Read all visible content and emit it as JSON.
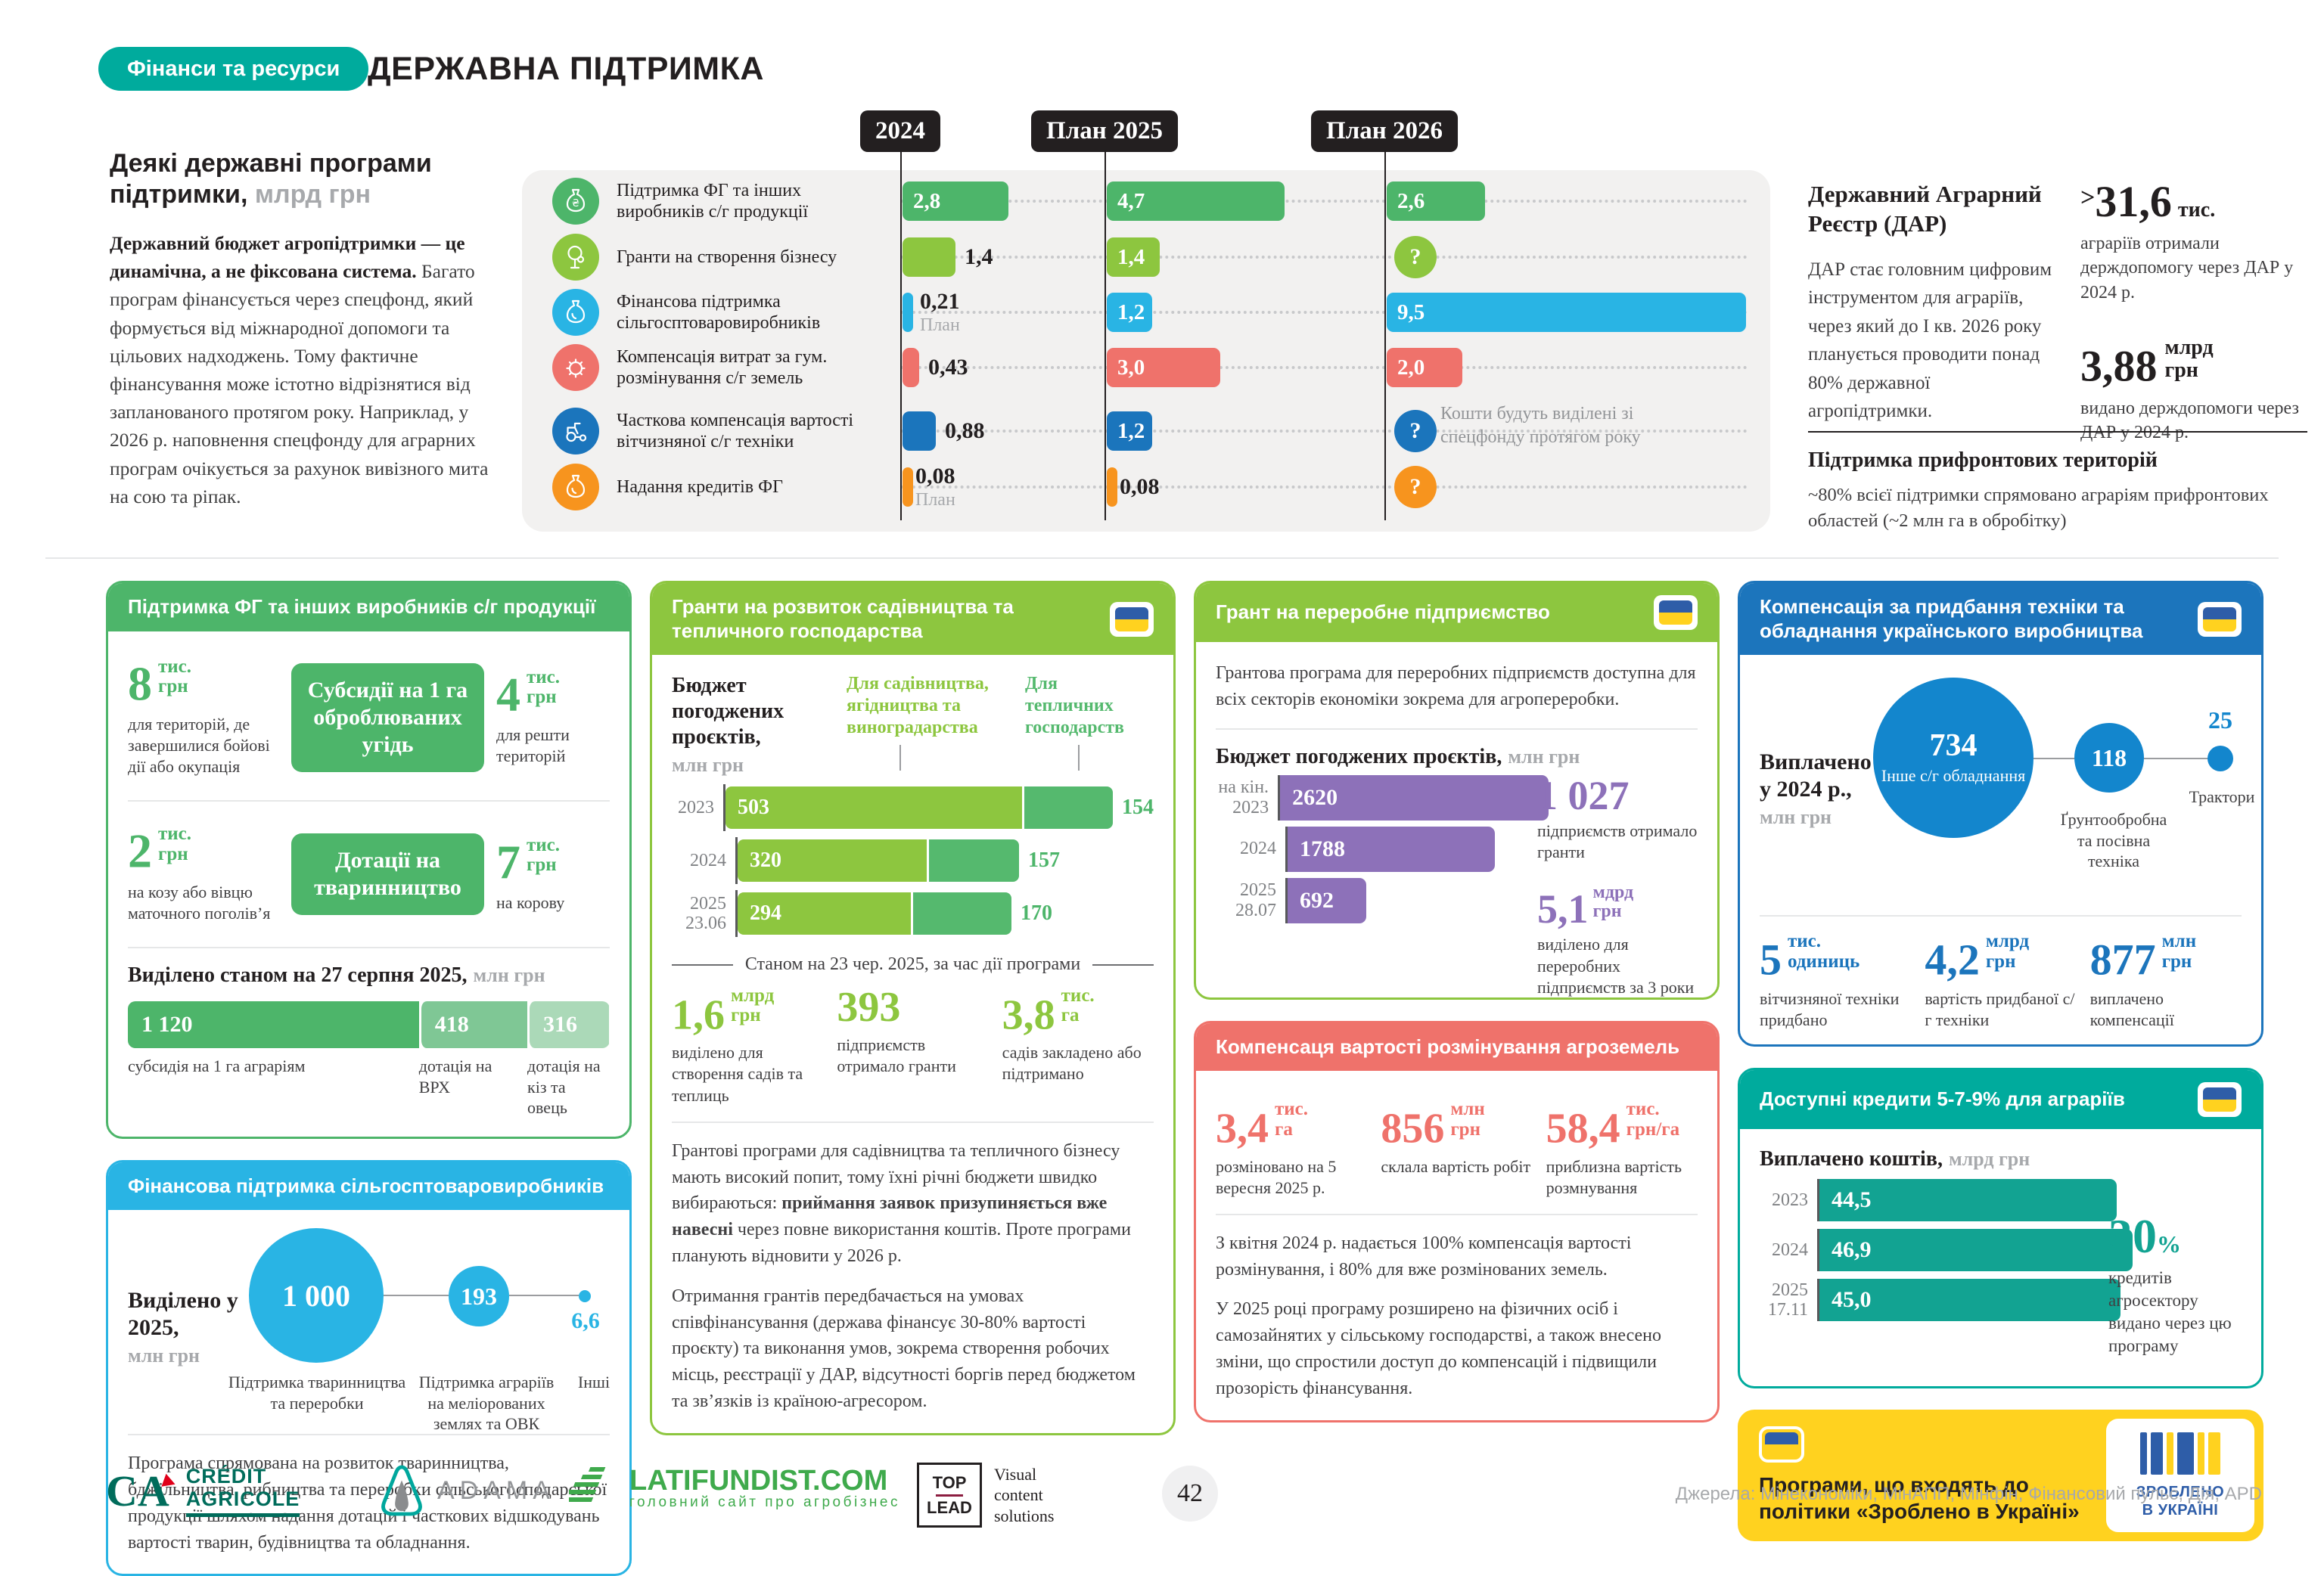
{
  "header": {
    "badge": "Фінанси та ресурси",
    "title": "ДЕРЖАВНА ПІДТРИМКА"
  },
  "intro": {
    "heading": "Деякі державні програми підтримки,",
    "heading_unit": "млрд грн",
    "lead": "Державний бюджет агропідтримки — це динамічна, а не фіксована система.",
    "body": " Багато програм фінансується через спецфонд, який формується від міжнародної допомоги та цільових надходжень. Тому фактичне фінансування може істотно відрізнятися від запланованого протягом року. Наприклад, у 2026 р. наповнення спецфонду для аграрних програм очікується за рахунок вивізного мита на сою та ріпак."
  },
  "chart": {
    "columns": [
      "2024",
      "План 2025",
      "План 2026"
    ],
    "note": "Кошти будуть виділені зі спецфонду протягом року",
    "rows": [
      {
        "label": "Підтримка ФГ та інших виробників с/г продукції",
        "icon": "sack-hryvnia-icon",
        "color": "#4db56a",
        "cells": [
          {
            "v": "2,8",
            "n": 2.8,
            "in": true
          },
          {
            "v": "4,7",
            "n": 4.7,
            "in": true
          },
          {
            "v": "2,6",
            "n": 2.6,
            "in": true
          }
        ]
      },
      {
        "label": "Гранти на створення бізнесу",
        "icon": "tree-icon",
        "color": "#8dc63f",
        "cells": [
          {
            "v": "1,4",
            "n": 1.4,
            "in": false
          },
          {
            "v": "1,4",
            "n": 1.4,
            "in": true
          },
          {
            "q": true
          }
        ]
      },
      {
        "label": "Фінансова підтримка сільгосптоваровиробників",
        "icon": "sack-icon",
        "color": "#29b4e4",
        "cells": [
          {
            "v": "0,21",
            "n": 0.21,
            "in": false,
            "sub": "План"
          },
          {
            "v": "1,2",
            "n": 1.2,
            "in": true
          },
          {
            "v": "9,5",
            "n": 9.5,
            "in": true
          }
        ]
      },
      {
        "label": "Компенсація витрат за гум. розмінування с/г земель",
        "icon": "mine-icon",
        "color": "#ef726b",
        "cells": [
          {
            "v": "0,43",
            "n": 0.43,
            "in": false
          },
          {
            "v": "3,0",
            "n": 3.0,
            "in": true
          },
          {
            "v": "2,0",
            "n": 2.0,
            "in": true
          }
        ]
      },
      {
        "label": "Часткова компенсація вартості вітчизняної с/г техніки",
        "icon": "tractor-icon",
        "color": "#1b75bc",
        "cells": [
          {
            "v": "0,88",
            "n": 0.88,
            "in": false
          },
          {
            "v": "1,2",
            "n": 1.2,
            "in": true
          },
          {
            "q": true
          }
        ]
      },
      {
        "label": "Надання кредитів ФГ",
        "icon": "sack-icon",
        "color": "#f7941e",
        "cells": [
          {
            "v": "0,08",
            "n": 0.08,
            "in": false,
            "sub": "План"
          },
          {
            "v": "0,08",
            "n": 0.08,
            "in": false
          },
          {
            "q": true
          }
        ]
      }
    ]
  },
  "dar": {
    "title": "Державний Аграрний Реєстр (ДАР)",
    "text": "ДАР стає головним цифровим інструментом для аграріїв, через який до І кв. 2026 року планується проводити понад 80% державної агропідтримки.",
    "stat1": {
      "prefix": ">",
      "value": "31,6",
      "unit": "тис.",
      "label": "аграріїв отримали держдопомогу через ДАР у 2024 р."
    },
    "stat2": {
      "value": "3,88",
      "unit": "млрд\nгрн",
      "label": "видано держдопомоги через ДАР у 2024 р."
    },
    "frontline_title": "Підтримка прифронтових територій",
    "frontline_text": "~80% всієї підтримки спрямовано аграріям прифронтових областей (~2 млн га в обробітку)"
  },
  "farm": {
    "title": "Підтримка ФГ та інших виробників с/г продукції",
    "rows": [
      {
        "left": {
          "v": "8",
          "unit": "тис.\nгрн",
          "label": "для територій, де завершилися бойові дії або окупація"
        },
        "badge": "Субсидії на 1 га оброблюваних угідь",
        "right": {
          "v": "4",
          "unit": "тис.\nгрн",
          "label": "для решти територій"
        }
      },
      {
        "left": {
          "v": "2",
          "unit": "тис.\nгрн",
          "label": "на козу або вівцю маточного поголів’я"
        },
        "badge": "Дотації на тваринництво",
        "right": {
          "v": "7",
          "unit": "тис.\nгрн",
          "label": "на корову"
        }
      }
    ],
    "allocated": {
      "title": "Виділено станом на 27 серпня 2025,",
      "unit": "млн грн",
      "segments": [
        {
          "v": "1 120",
          "n": 1120,
          "label": "субсидія на 1 га аграріям"
        },
        {
          "v": "418",
          "n": 418,
          "label": "дотація на ВРХ"
        },
        {
          "v": "316",
          "n": 316,
          "label": "дотація на кіз та овець"
        }
      ]
    }
  },
  "finsupport": {
    "title": "Фінансова підтримка сільгосптоваровиробників",
    "alloc": "Виділено у 2025,",
    "alloc_unit": "млн грн",
    "bubbles": [
      {
        "v": "1 000",
        "label": "Підтримка тваринництва та переробки"
      },
      {
        "v": "193",
        "label": "Підтримка аграріїв на меліорованих землях та ОВК"
      },
      {
        "v": "6,6",
        "label": "Інші"
      }
    ],
    "para": "Програма спрямована на розвиток тваринництва, бджільництва, рибництва та переробки сільськогосподарської продукції шляхом надання дотацій і часткових відшкодувань вартості тварин, будівництва та обладнання."
  },
  "garden": {
    "title": "Гранти на розвиток садівництва та тепличного господарства",
    "chart_title": "Бюджет погоджених проєктів,",
    "chart_unit": "млн грн",
    "legend": [
      {
        "label": "Для садівництва, ягідництва та виноградарства",
        "color": "#8dc63f"
      },
      {
        "label": "Для тепличних господарств",
        "color": "#55b96e"
      }
    ],
    "chart": {
      "rows": [
        {
          "y": "2023",
          "a": 503,
          "b": 154
        },
        {
          "y": "2024",
          "a": 320,
          "b": 157
        },
        {
          "y": "2025|23.06",
          "a": 294,
          "b": 170
        }
      ]
    },
    "asof": "Станом на 23 чер. 2025, за час дії програми",
    "stats": [
      {
        "v": "1,6",
        "unit": "млрд\nгрн",
        "label": "виділено для створення садів та теплиць"
      },
      {
        "v": "393",
        "unit": "",
        "label": "підприємств отримало гранти"
      },
      {
        "v": "3,8",
        "unit": "тис.\nга",
        "label": "садів закладено або підтримано"
      }
    ],
    "para1_pre": "Грантові програми для садівництва та тепличного бізнесу мають високий попит, тому їхні річні бюджети швидко вибираються: ",
    "para1_bold": "приймання заявок призупиняється вже навесні",
    "para1_post": " через повне використання коштів. Проте програми планують відновити у 2026 р.",
    "para2": "Отримання грантів передбачається на умовах співфінансування (держава фінансує 30-80% вартості проєкту) та виконання умов, зокрема створення робочих місць, реєстрації у ДАР, відсутності боргів перед бюджетом та зв’язків із країною-агресором."
  },
  "processing": {
    "title": "Грант на переробне підприємство",
    "intro": "Грантова програма для переробних підприємств доступна для всіх секторів економіки зокрема для агропереробки.",
    "chart_title": "Бюджет погоджених проєктів,",
    "chart_unit": "млн грн",
    "chart": {
      "rows": [
        {
          "y": "на кін.|2023",
          "v": "2620",
          "n": 2620
        },
        {
          "y": "2024",
          "v": "1788",
          "n": 1788
        },
        {
          "y": "2025|28.07",
          "v": "692",
          "n": 692
        }
      ]
    },
    "stat1": {
      "v": "1 027",
      "label": "підприємств отримало гранти"
    },
    "stat2": {
      "v": "5,1",
      "unit": "мдрд\nгрн",
      "label": "виділено для переробних підприємств за 3 роки"
    }
  },
  "demining": {
    "title": "Компенсаця вартості розмінування агроземель",
    "stats": [
      {
        "v": "3,4",
        "unit": "тис.\nга",
        "label": "розміновано на 5 вересня 2025 р."
      },
      {
        "v": "856",
        "unit": "млн\nгрн",
        "label": "склала вартість робіт"
      },
      {
        "v": "58,4",
        "unit": "тис.\nгрн/га",
        "label": "приблизна вартість розмнування"
      }
    ],
    "para1": "З квітня 2024 р. надається 100% компенсація вартості розмінування, і 80% для вже розмінованих земель.",
    "para2": "У 2025 році програму розширено на фізичних осіб і самозайнятих у сільському господарстві, а також внесено зміни, що спростили доступ до компенсацій і підвищили прозорість фінансування."
  },
  "machinery": {
    "title": "Компенсація за придбання техніки та обладнання українського виробництва",
    "paid": "Виплачено у 2024 р.,",
    "paid_unit": "млн грн",
    "bubbles": [
      {
        "v": "734",
        "label": "Інше с/г обладнання"
      },
      {
        "v": "118",
        "label": "Ґрунтообробна та посівна техніка"
      },
      {
        "v": "25",
        "label": "Трактори"
      }
    ],
    "stats": [
      {
        "v": "5",
        "unit": "тис.\nодиниць",
        "label": "вітчизняної техніки придбано"
      },
      {
        "v": "4,2",
        "unit": "млрд\nгрн",
        "label": "вартість придбаної с/г техніки"
      },
      {
        "v": "877",
        "unit": "млн\nгрн",
        "label": "виплачено компенсації"
      }
    ]
  },
  "credit": {
    "title": "Доступні кредити 5-7-9% для аграріїв",
    "chart_title": "Виплачено коштів,",
    "chart_unit": "млрд грн",
    "chart": {
      "rows": [
        {
          "y": "2023",
          "v": "44,5",
          "n": 44.5
        },
        {
          "y": "2024",
          "v": "46,9",
          "n": 46.9
        },
        {
          "y": "2025|17.11",
          "v": "45,0",
          "n": 45.0
        }
      ]
    },
    "stat": {
      "v": "30",
      "unit": "%",
      "label": "кредитів агросектору видано через цю програму"
    }
  },
  "madeinua": {
    "title": "Програми, що входять до політики «Зроблено в Україні»",
    "logo_line1": "ЗРОБЛЕНО",
    "logo_line2": "В УКРАЇНІ"
  },
  "footer": {
    "ca_line1": "CRÉDIT",
    "ca_line2": "AGRICOLE",
    "ca_mono": "CA",
    "adama": "ADAMA",
    "latifundist": "LATIFUNDIST.COM",
    "latifundist_tag": "головний сайт про агробізнес",
    "toplead_top": "TOP",
    "toplead_bottom": "LEAD",
    "toplead_tag": "Visual\ncontent\nsolutions",
    "page": "42",
    "sources": "Джерела: Мінекономіки, МінАПП, Мінфін, Фінансовий пульс, Дія, APD"
  },
  "chart_data": [
    {
      "type": "bar",
      "title": "Деякі державні програми підтримки, млрд грн",
      "categories": [
        "2024",
        "План 2025",
        "План 2026"
      ],
      "series": [
        {
          "name": "Підтримка ФГ та інших виробників с/г продукції",
          "values": [
            2.8,
            4.7,
            2.6
          ]
        },
        {
          "name": "Гранти на створення бізнесу",
          "values": [
            1.4,
            1.4,
            null
          ]
        },
        {
          "name": "Фінансова підтримка сільгосптоваровиробників",
          "values": [
            0.21,
            1.2,
            9.5
          ]
        },
        {
          "name": "Компенсація витрат за гум. розмінування с/г земель",
          "values": [
            0.43,
            3.0,
            2.0
          ]
        },
        {
          "name": "Часткова компенсація вартості вітчизняної с/г техніки",
          "values": [
            0.88,
            1.2,
            null
          ]
        },
        {
          "name": "Надання кредитів ФГ",
          "values": [
            0.08,
            0.08,
            null
          ]
        }
      ],
      "note": "null — кошти будуть виділені зі спецфонду протягом року"
    },
    {
      "type": "bar",
      "title": "Виділено станом на 27 серпня 2025, млн грн",
      "categories": [
        "субсидія на 1 га аграріям",
        "дотація на ВРХ",
        "дотація на кіз та овець"
      ],
      "values": [
        1120,
        418,
        316
      ]
    },
    {
      "type": "bar",
      "title": "Фінансова підтримка: виділено у 2025, млн грн",
      "categories": [
        "Підтримка тваринництва та переробки",
        "Підтримка аграріїв на меліорованих землях та ОВК",
        "Інші"
      ],
      "values": [
        1000,
        193,
        6.6
      ]
    },
    {
      "type": "bar",
      "title": "Гранти на садівництво: бюджет погоджених проєктів, млн грн",
      "categories": [
        "2023",
        "2024",
        "2025 (23.06)"
      ],
      "series": [
        {
          "name": "Для садівництва, ягідництва та виноградарства",
          "values": [
            503,
            320,
            294
          ]
        },
        {
          "name": "Для тепличних господарств",
          "values": [
            154,
            157,
            170
          ]
        }
      ]
    },
    {
      "type": "bar",
      "title": "Грант на переробне підприємство: бюджет погоджених проєктів, млн грн",
      "categories": [
        "на кін. 2023",
        "2024",
        "2025 (28.07)"
      ],
      "values": [
        2620,
        1788,
        692
      ]
    },
    {
      "type": "bar",
      "title": "Компенсація за придбання техніки: виплачено у 2024 р., млн грн",
      "categories": [
        "Інше с/г обладнання",
        "Ґрунтообробна та посівна техніка",
        "Трактори"
      ],
      "values": [
        734,
        118,
        25
      ]
    },
    {
      "type": "bar",
      "title": "Кредити 5-7-9%: виплачено коштів, млрд грн",
      "categories": [
        "2023",
        "2024",
        "2025 (17.11)"
      ],
      "values": [
        44.5,
        46.9,
        45.0
      ]
    }
  ]
}
